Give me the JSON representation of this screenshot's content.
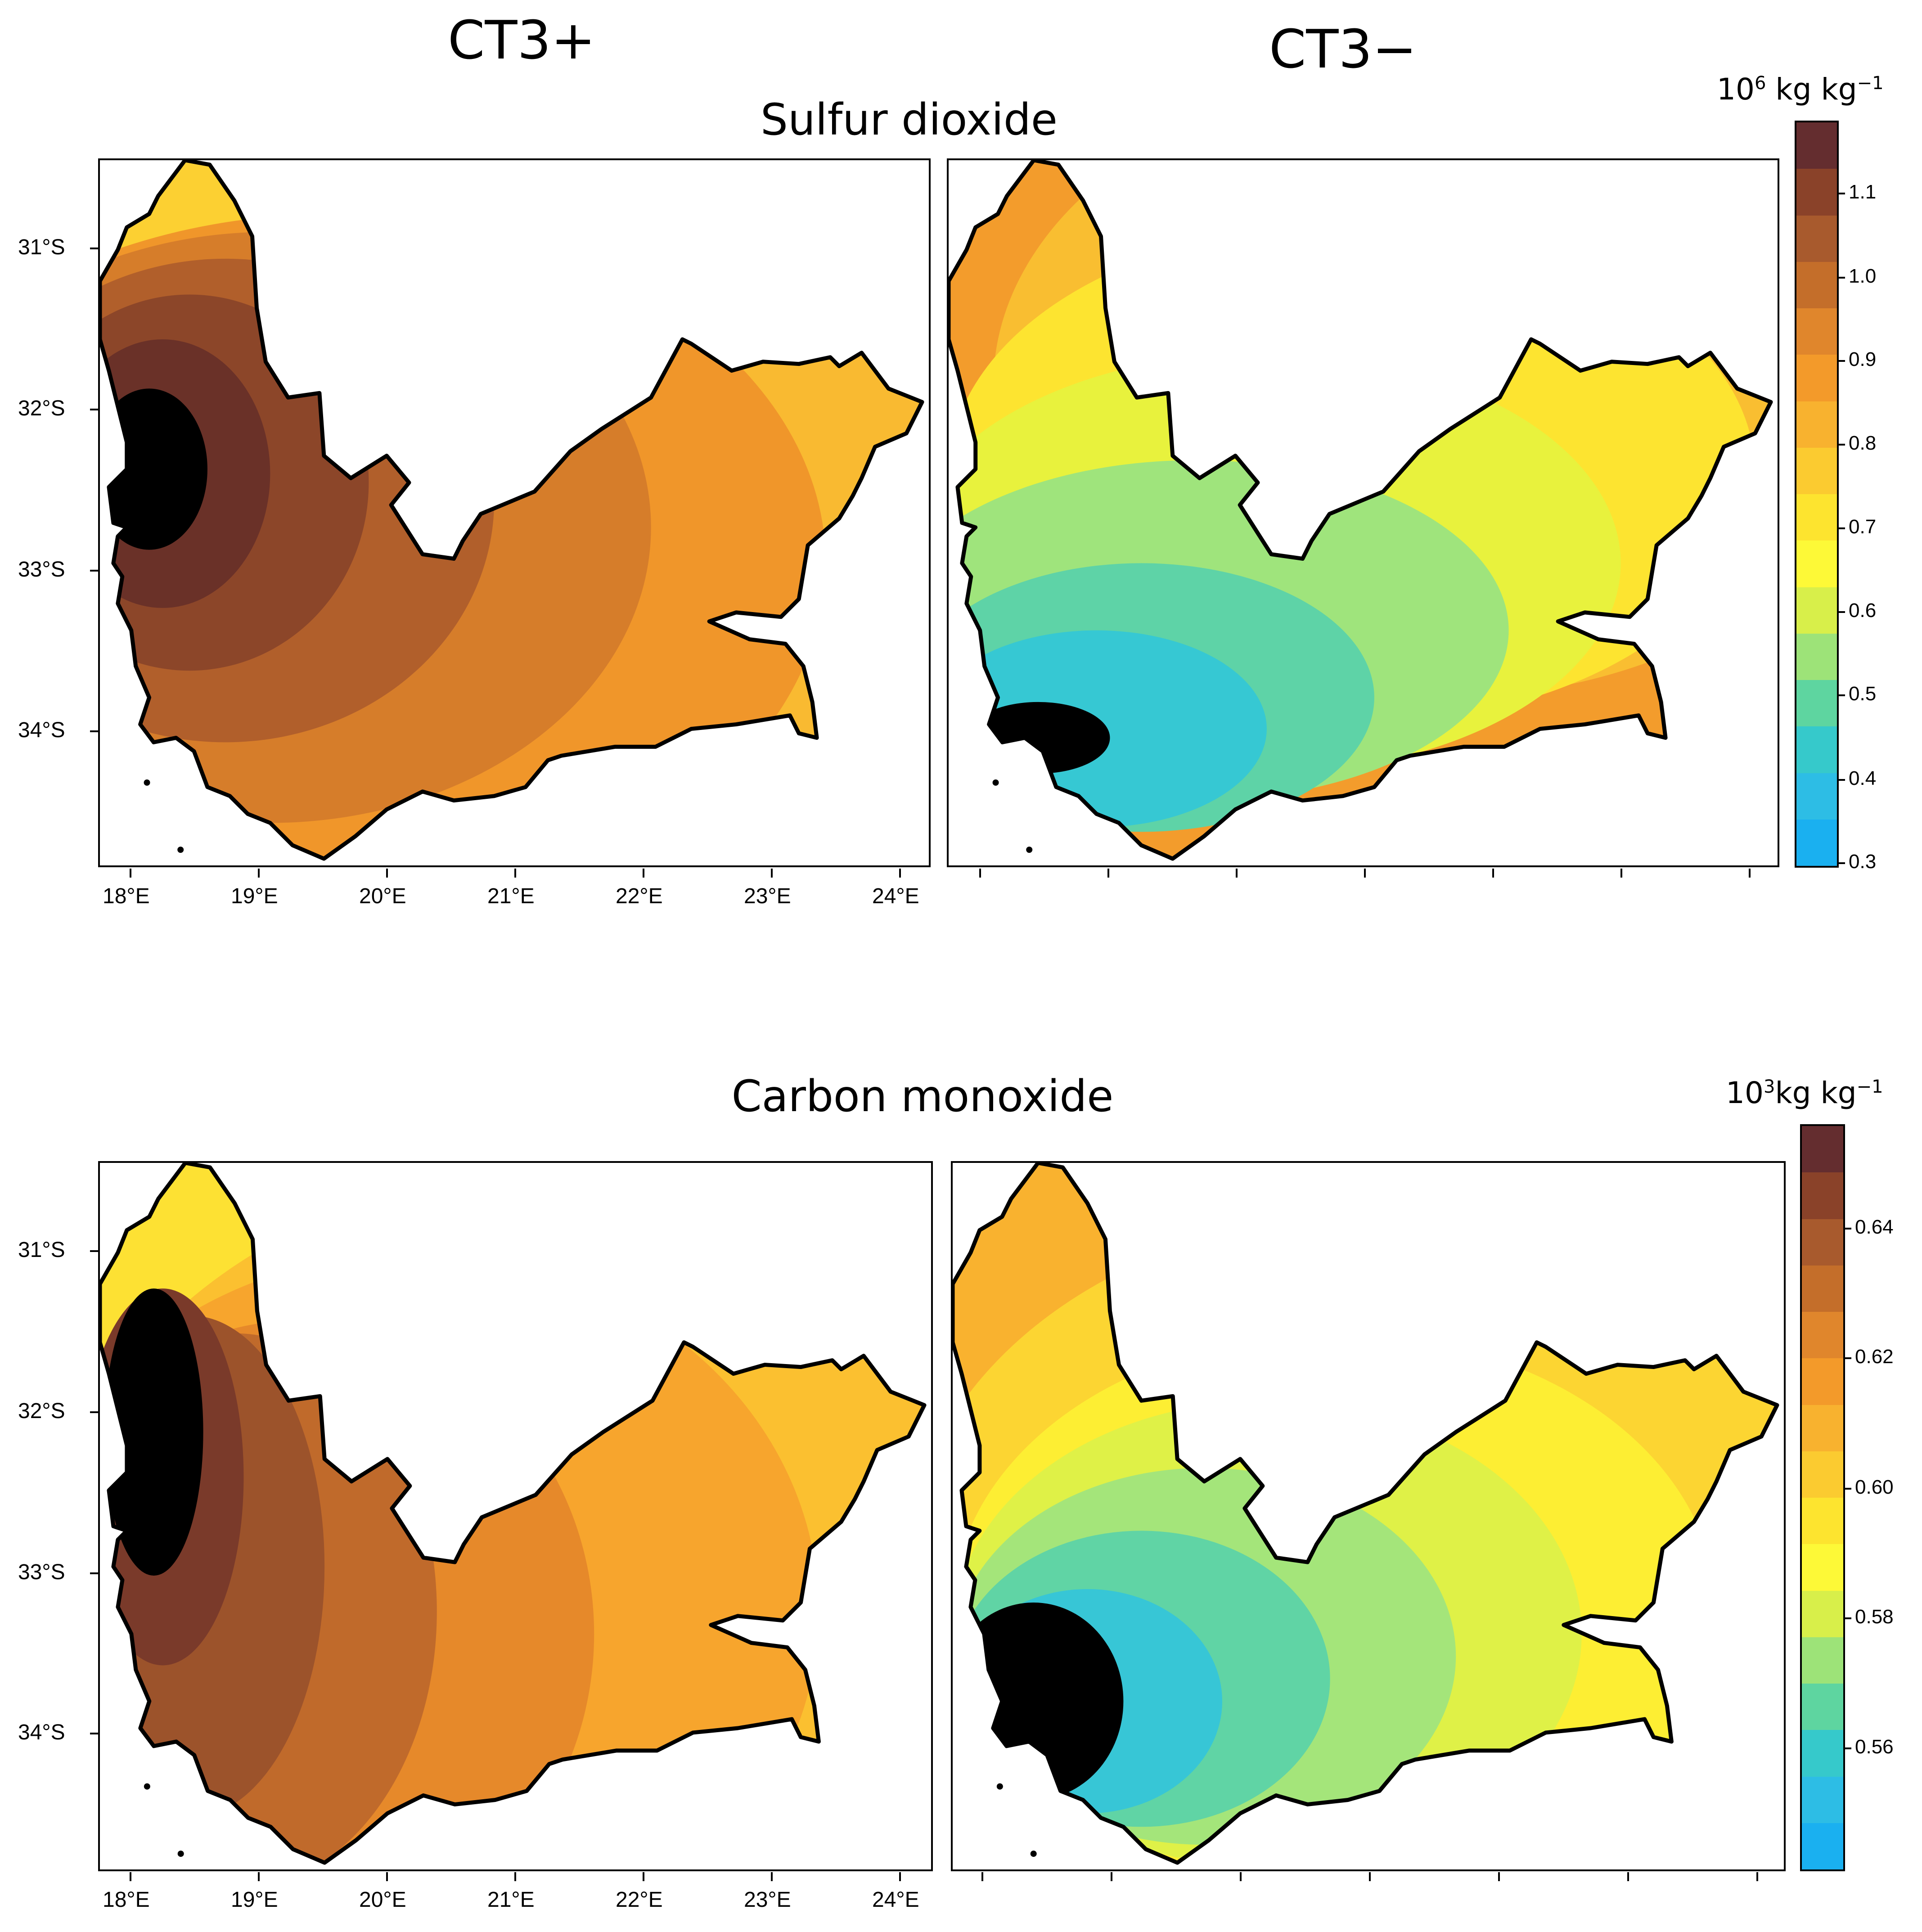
{
  "column_titles": [
    "CT3+",
    "CT3−"
  ],
  "sections": [
    {
      "title": "Sulfur dioxide",
      "unit_base": "10",
      "unit_exp": "6",
      "unit_rest": " kg kg",
      "unit_rest_exp": "−1",
      "colorbar_ticks": [
        "1.1",
        "1.0",
        "0.9",
        "0.8",
        "0.7",
        "0.6",
        "0.5",
        "0.4",
        "0.3"
      ]
    },
    {
      "title": "Carbon monoxide",
      "unit_base": "10",
      "unit_exp": "3",
      "unit_rest": "kg kg",
      "unit_rest_exp": "−1",
      "colorbar_ticks": [
        "0.64",
        "0.62",
        "0.60",
        "0.58",
        "0.56"
      ]
    }
  ],
  "lat_labels": [
    "31°S",
    "32°S",
    "33°S",
    "34°S"
  ],
  "lon_labels": [
    "18°E",
    "19°E",
    "20°E",
    "21°E",
    "22°E",
    "23°E",
    "24°E"
  ],
  "colorbar_colors": [
    "#642d2f",
    "#8a4229",
    "#a85a2d",
    "#c46e2a",
    "#e0862c",
    "#f39a2a",
    "#f8b22f",
    "#fbcb30",
    "#fde42f",
    "#fdf937",
    "#d8ef4a",
    "#9de378",
    "#5ed5a0",
    "#36c9cb",
    "#2dbde5",
    "#1ab0f0"
  ],
  "map_fills": {
    "so2_plus": [
      "#6a3128",
      "#8c4629",
      "#b15f2b",
      "#d67d2a",
      "#f0962a",
      "#f9ba31",
      "#fcd032"
    ],
    "so2_minus": [
      "#36c8d3",
      "#5ed3a7",
      "#9fe47c",
      "#e8f23d",
      "#fde430",
      "#f9be31",
      "#f39c2c"
    ],
    "co_plus": [
      "#7a3a2a",
      "#9c532b",
      "#c06a2b",
      "#e6892a",
      "#f7a52d",
      "#fbc030",
      "#fde133"
    ],
    "co_minus": [
      "#37c6d6",
      "#60d4a5",
      "#a4e57a",
      "#dff147",
      "#fdee33",
      "#fcd532",
      "#f9b22f"
    ]
  }
}
